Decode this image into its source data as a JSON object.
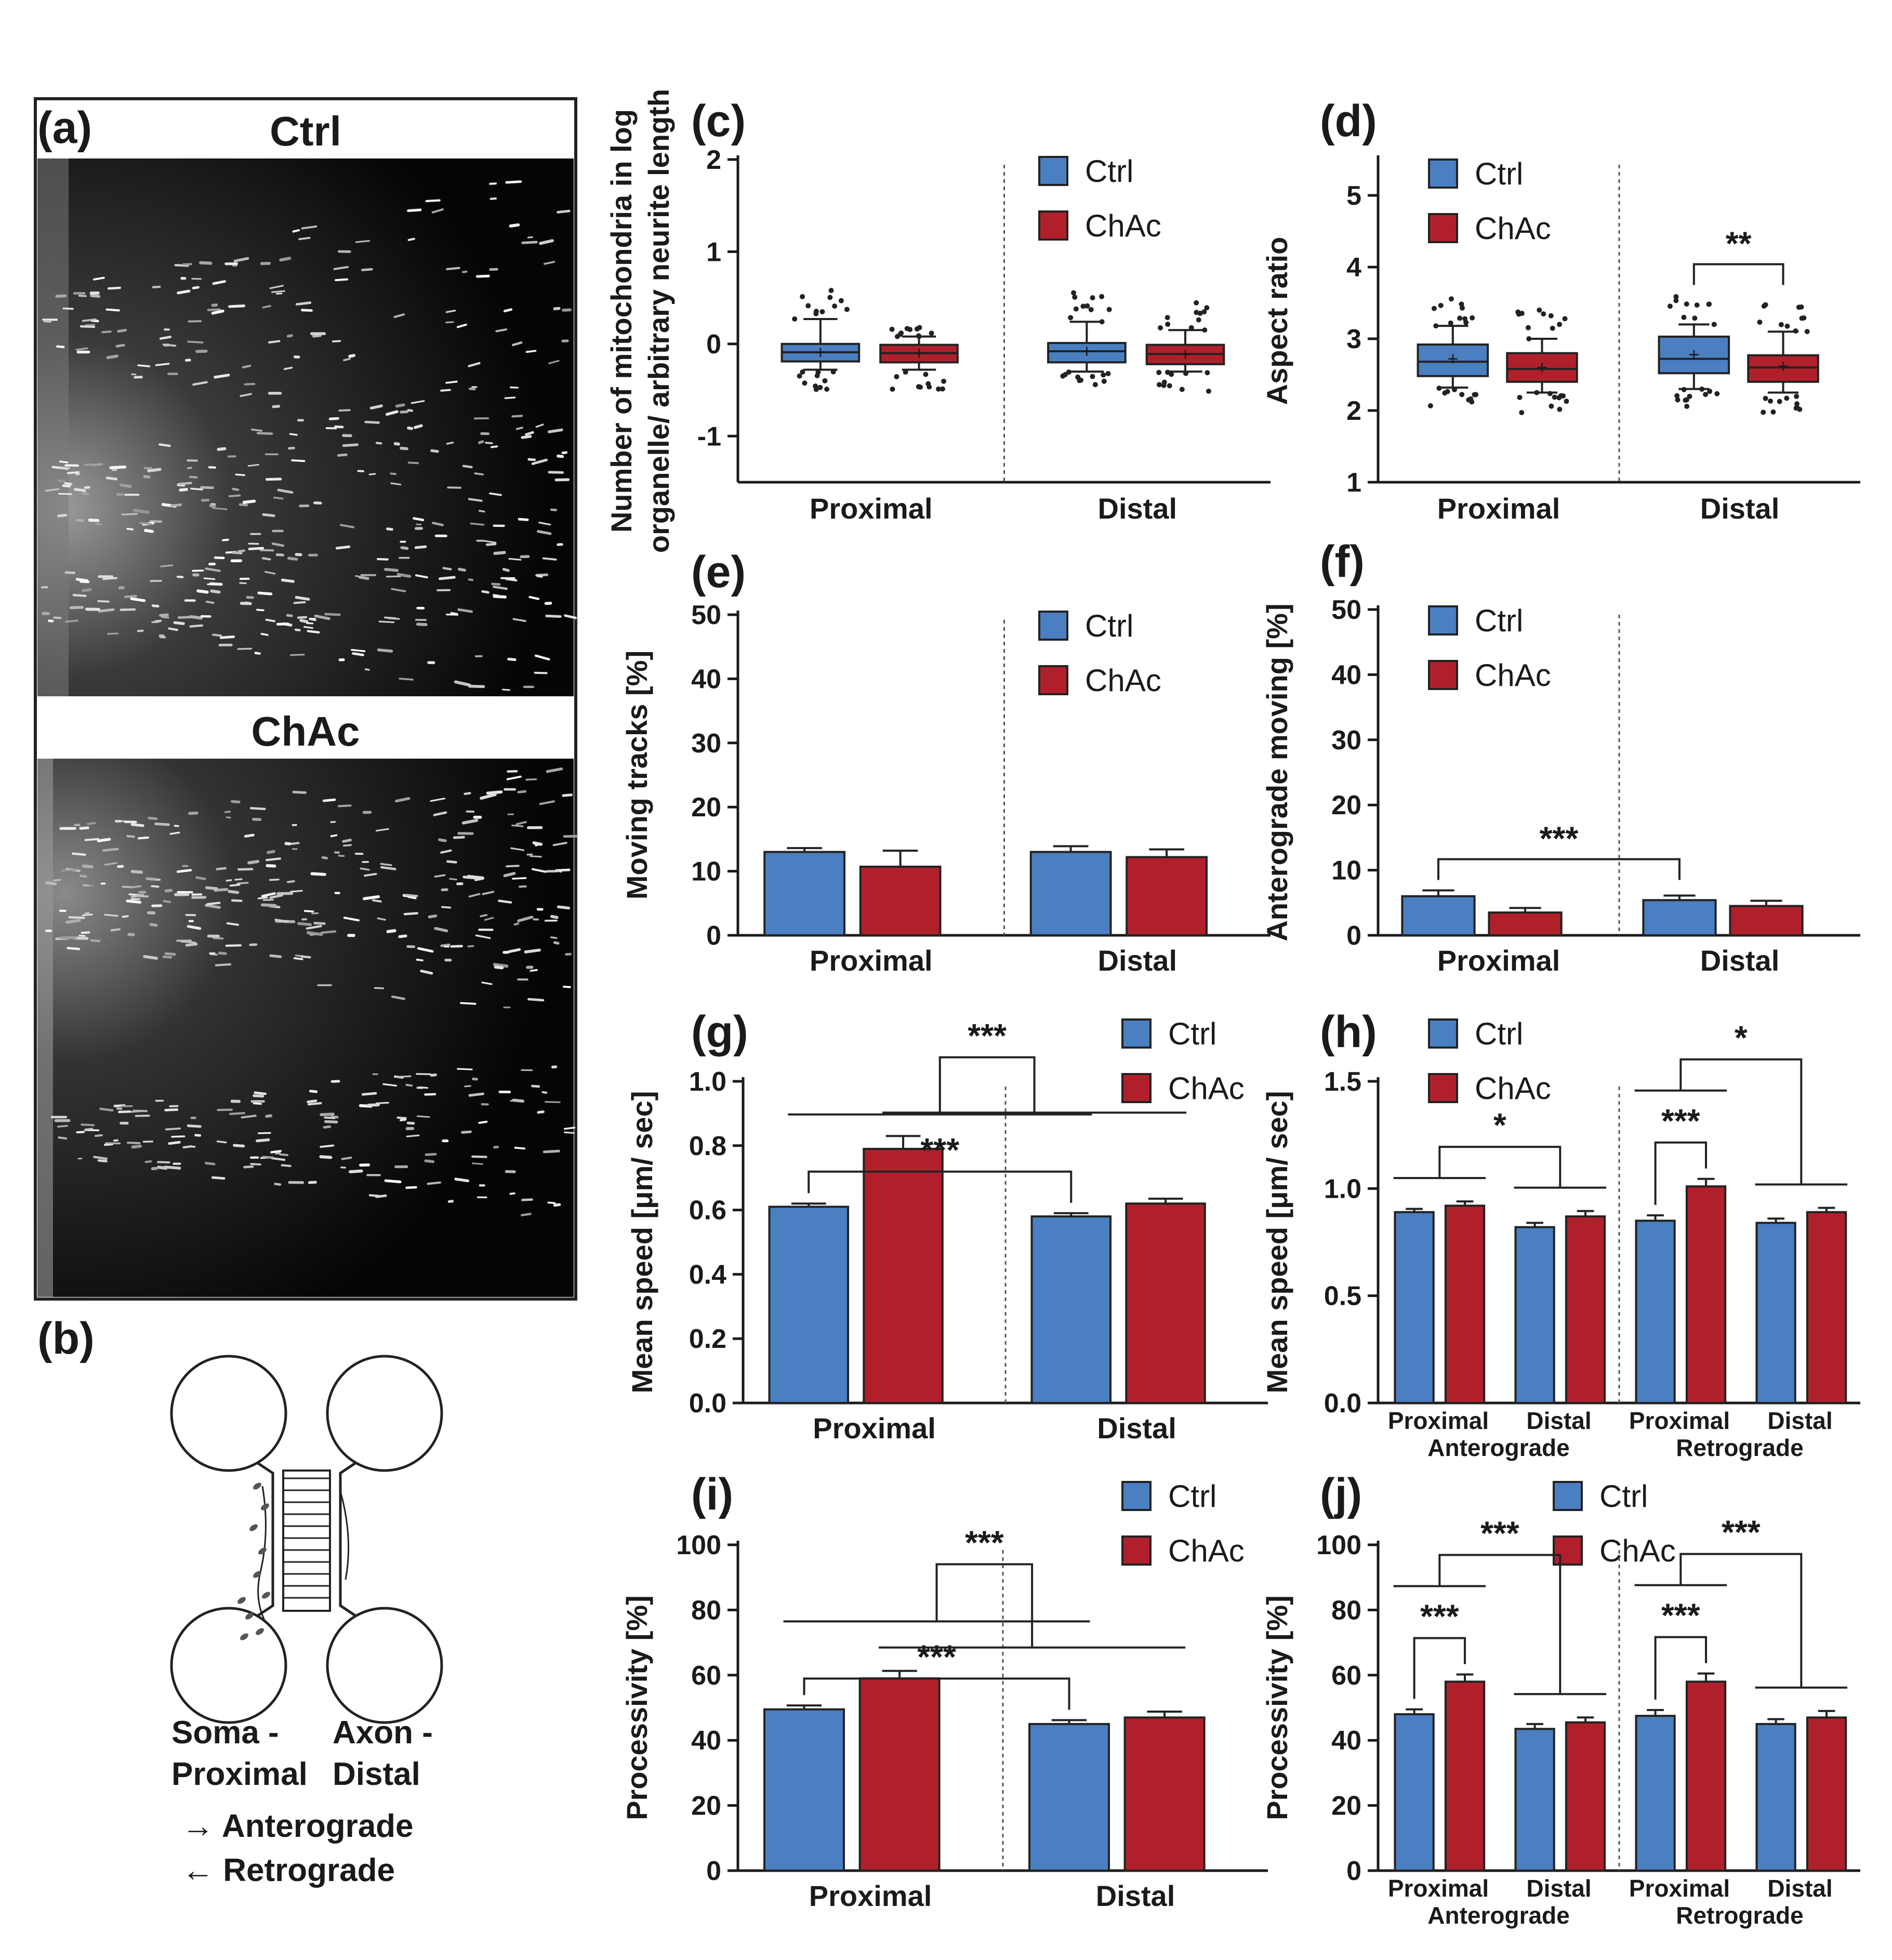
{
  "colors": {
    "ctrl": "#4a7fc1",
    "chac": "#b0202b",
    "axis": "#1a1a1a"
  },
  "panels": {
    "a": {
      "letter": "(a)",
      "ctrl_label": "Ctrl",
      "chac_label": "ChAc"
    },
    "b": {
      "letter": "(b)",
      "soma": "Soma -",
      "proximal": "Proximal",
      "axon": "Axon -",
      "distal": "Distal",
      "anterograde": "→ Anterograde",
      "retrograde": "← Retrograde"
    }
  },
  "chart_data": [
    {
      "id": "c",
      "letter": "(c)",
      "type": "box",
      "ylabel_lines": [
        "Number of mitochondria in log",
        "organelle/ arbitrary neurite length"
      ],
      "ylim": [
        -1.5,
        2
      ],
      "yticks": [
        2,
        1,
        0,
        -1
      ],
      "groups": [
        {
          "label": "Proximal",
          "boxes": [
            {
              "series": "Ctrl",
              "q1": -0.19,
              "median": -0.09,
              "q3": 0.0,
              "whisker_low": -0.28,
              "whisker_high": 0.27,
              "mean": -0.09
            },
            {
              "series": "ChAc",
              "q1": -0.2,
              "median": -0.1,
              "q3": -0.01,
              "whisker_low": -0.28,
              "whisker_high": 0.08,
              "mean": -0.1
            }
          ]
        },
        {
          "label": "Distal",
          "boxes": [
            {
              "series": "Ctrl",
              "q1": -0.2,
              "median": -0.08,
              "q3": 0.01,
              "whisker_low": -0.3,
              "whisker_high": 0.24,
              "mean": -0.08
            },
            {
              "series": "ChAc",
              "q1": -0.22,
              "median": -0.11,
              "q3": -0.01,
              "whisker_low": -0.3,
              "whisker_high": 0.15,
              "mean": -0.11
            }
          ]
        }
      ],
      "legend": [
        "Ctrl",
        "ChAc"
      ],
      "significance": []
    },
    {
      "id": "d",
      "letter": "(d)",
      "type": "box",
      "ylabel_lines": [
        "Aspect ratio"
      ],
      "ylim": [
        1,
        5.5
      ],
      "yticks": [
        5,
        4,
        3,
        2,
        1
      ],
      "groups": [
        {
          "label": "Proximal",
          "boxes": [
            {
              "series": "Ctrl",
              "q1": 2.48,
              "median": 2.68,
              "q3": 2.92,
              "whisker_low": 2.32,
              "whisker_high": 3.18,
              "mean": 2.72
            },
            {
              "series": "ChAc",
              "q1": 2.4,
              "median": 2.58,
              "q3": 2.8,
              "whisker_low": 2.25,
              "whisker_high": 3.0,
              "mean": 2.6
            }
          ]
        },
        {
          "label": "Distal",
          "boxes": [
            {
              "series": "Ctrl",
              "q1": 2.52,
              "median": 2.72,
              "q3": 3.03,
              "whisker_low": 2.3,
              "whisker_high": 3.2,
              "mean": 2.78
            },
            {
              "series": "ChAc",
              "q1": 2.4,
              "median": 2.6,
              "q3": 2.77,
              "whisker_low": 2.25,
              "whisker_high": 3.1,
              "mean": 2.62
            }
          ]
        }
      ],
      "legend": [
        "Ctrl",
        "ChAc"
      ],
      "significance": [
        {
          "label": "**"
        }
      ]
    },
    {
      "id": "e",
      "letter": "(e)",
      "type": "bar",
      "ylabel_lines": [
        "Moving tracks [%]"
      ],
      "ylim": [
        0,
        50
      ],
      "yticks": [
        50,
        40,
        30,
        20,
        10,
        0
      ],
      "categories": [
        "Proximal",
        "Distal"
      ],
      "series": [
        {
          "name": "Ctrl",
          "values": [
            13,
            13
          ],
          "errors": [
            0.6,
            0.9
          ]
        },
        {
          "name": "ChAc",
          "values": [
            10.7,
            12.2
          ],
          "errors": [
            2.5,
            1.2
          ]
        }
      ],
      "legend": [
        "Ctrl",
        "ChAc"
      ],
      "significance": []
    },
    {
      "id": "f",
      "letter": "(f)",
      "type": "bar",
      "ylabel_lines": [
        "Anterograde moving [%]"
      ],
      "ylim": [
        0,
        50
      ],
      "yticks": [
        50,
        40,
        30,
        20,
        10,
        0
      ],
      "categories": [
        "Proximal",
        "Distal"
      ],
      "series": [
        {
          "name": "Ctrl",
          "values": [
            6,
            5.4
          ],
          "errors": [
            0.9,
            0.7
          ]
        },
        {
          "name": "ChAc",
          "values": [
            3.5,
            4.5
          ],
          "errors": [
            0.7,
            0.8
          ]
        }
      ],
      "legend": [
        "Ctrl",
        "ChAc"
      ],
      "significance": [
        {
          "label": "***"
        }
      ]
    },
    {
      "id": "g",
      "letter": "(g)",
      "type": "bar",
      "ylabel_lines": [
        "Mean speed [μm/ sec]"
      ],
      "ylim": [
        0,
        1.0
      ],
      "yticks": [
        "1.0",
        "0.8",
        "0.6",
        "0.4",
        "0.2",
        "0.0"
      ],
      "categories": [
        "Proximal",
        "Distal"
      ],
      "series": [
        {
          "name": "Ctrl",
          "values": [
            0.61,
            0.58
          ],
          "errors": [
            0.01,
            0.01
          ]
        },
        {
          "name": "ChAc",
          "values": [
            0.79,
            0.62
          ],
          "errors": [
            0.04,
            0.015
          ]
        }
      ],
      "legend": [
        "Ctrl",
        "ChAc"
      ],
      "significance": [
        {
          "label": "***"
        },
        {
          "label": "***"
        }
      ]
    },
    {
      "id": "h",
      "letter": "(h)",
      "type": "bar",
      "ylabel_lines": [
        "Mean speed [μm/ sec]"
      ],
      "ylim": [
        0,
        1.5
      ],
      "yticks": [
        "1.5",
        "1.0",
        "0.5",
        "0.0"
      ],
      "categories": [
        "Proximal",
        "Distal",
        "Proximal",
        "Distal"
      ],
      "supergroups": [
        "Anterograde",
        "Retrograde"
      ],
      "series": [
        {
          "name": "Ctrl",
          "values": [
            0.89,
            0.82,
            0.85,
            0.84
          ],
          "errors": [
            0.015,
            0.02,
            0.025,
            0.02
          ]
        },
        {
          "name": "ChAc",
          "values": [
            0.92,
            0.87,
            1.01,
            0.89
          ],
          "errors": [
            0.02,
            0.025,
            0.035,
            0.02
          ]
        }
      ],
      "legend": [
        "Ctrl",
        "ChAc"
      ],
      "significance": [
        {
          "label": "*"
        },
        {
          "label": "***"
        },
        {
          "label": "*"
        }
      ]
    },
    {
      "id": "i",
      "letter": "(i)",
      "type": "bar",
      "ylabel_lines": [
        "Processivity [%]"
      ],
      "ylim": [
        0,
        100
      ],
      "yticks": [
        100,
        80,
        60,
        40,
        20,
        0
      ],
      "categories": [
        "Proximal",
        "Distal"
      ],
      "series": [
        {
          "name": "Ctrl",
          "values": [
            49.5,
            45
          ],
          "errors": [
            1.2,
            1.2
          ]
        },
        {
          "name": "ChAc",
          "values": [
            59,
            47
          ],
          "errors": [
            2.3,
            1.8
          ]
        }
      ],
      "legend": [
        "Ctrl",
        "ChAc"
      ],
      "significance": [
        {
          "label": "***"
        },
        {
          "label": "***"
        }
      ]
    },
    {
      "id": "j",
      "letter": "(j)",
      "type": "bar",
      "ylabel_lines": [
        "Processivity [%]"
      ],
      "ylim": [
        0,
        100
      ],
      "yticks": [
        100,
        80,
        60,
        40,
        20,
        0
      ],
      "categories": [
        "Proximal",
        "Distal",
        "Proximal",
        "Distal"
      ],
      "supergroups": [
        "Anterograde",
        "Retrograde"
      ],
      "series": [
        {
          "name": "Ctrl",
          "values": [
            48,
            43.5,
            47.5,
            45
          ],
          "errors": [
            1.5,
            1.5,
            1.8,
            1.5
          ]
        },
        {
          "name": "ChAc",
          "values": [
            58,
            45.5,
            58,
            47
          ],
          "errors": [
            2.2,
            1.5,
            2.5,
            2.0
          ]
        }
      ],
      "legend": [
        "Ctrl",
        "ChAc"
      ],
      "significance": [
        {
          "label": "***"
        },
        {
          "label": "***"
        },
        {
          "label": "***"
        },
        {
          "label": "***"
        }
      ]
    }
  ]
}
